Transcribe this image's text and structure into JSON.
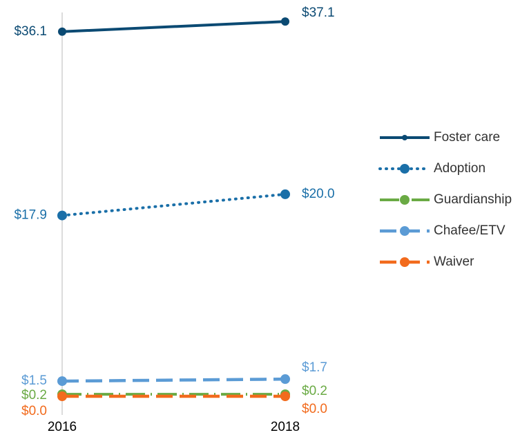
{
  "chart_data": {
    "type": "line",
    "x": [
      "2016",
      "2018"
    ],
    "ylim": [
      0,
      38
    ],
    "legend": "right",
    "series": [
      {
        "name": "Foster care",
        "color": "#0b4a73",
        "style": "solid",
        "values": [
          36.1,
          37.1
        ],
        "value_labels": [
          "$36.1",
          "$37.1"
        ]
      },
      {
        "name": "Adoption",
        "color": "#1a6fa8",
        "style": "dotted",
        "values": [
          17.9,
          20.0
        ],
        "value_labels": [
          "$17.9",
          "$20.0"
        ]
      },
      {
        "name": "Guardianship",
        "color": "#6aaa44",
        "style": "dashdot",
        "values": [
          0.2,
          0.2
        ],
        "value_labels": [
          "$0.2",
          "$0.2"
        ]
      },
      {
        "name": "Chafee/ETV",
        "color": "#5b9bd5",
        "style": "dashed",
        "values": [
          1.5,
          1.7
        ],
        "value_labels": [
          "$1.5",
          "$1.7"
        ]
      },
      {
        "name": "Waiver",
        "color": "#f26b1d",
        "style": "dashed",
        "values": [
          0.0,
          0.0
        ],
        "value_labels": [
          "$0.0",
          "$0.0"
        ]
      }
    ]
  }
}
